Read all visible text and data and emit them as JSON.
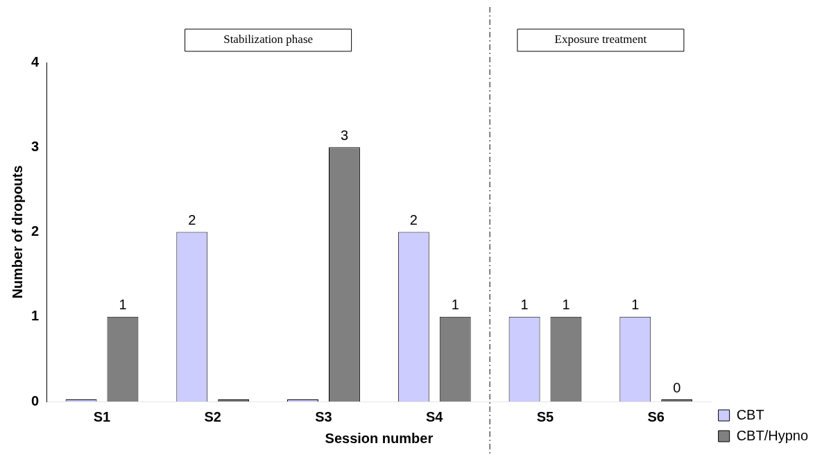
{
  "chart_data": {
    "type": "bar",
    "xlabel": "Session number",
    "ylabel": "Number of dropouts",
    "categories": [
      "S1",
      "S2",
      "S3",
      "S4",
      "S5",
      "S6"
    ],
    "series": [
      {
        "name": "CBT",
        "color": "#ccccff",
        "values": [
          0,
          2,
          0,
          2,
          1,
          1
        ],
        "value_labels": [
          null,
          "2",
          null,
          "2",
          "1",
          "1"
        ]
      },
      {
        "name": "CBT/Hypno",
        "color": "#808080",
        "values": [
          1,
          0,
          3,
          1,
          1,
          0
        ],
        "value_labels": [
          "1",
          null,
          "3",
          "1",
          "1",
          "0"
        ]
      }
    ],
    "ylim": [
      0,
      4
    ],
    "yticks": [
      0,
      1,
      2,
      3,
      4
    ],
    "grid": false,
    "legend": "right",
    "annotations": [
      "Stabilization phase",
      "Exposure treatment"
    ]
  }
}
